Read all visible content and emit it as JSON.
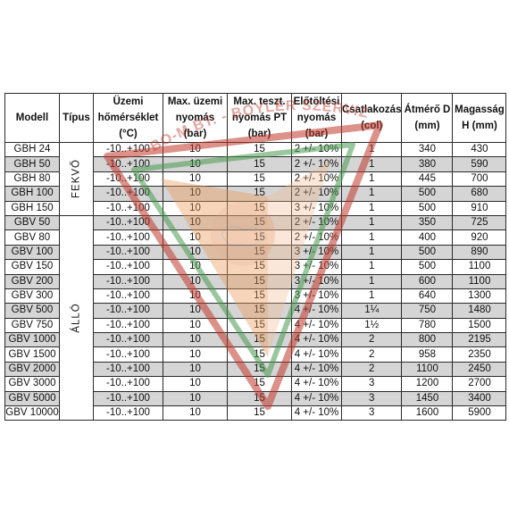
{
  "headers": {
    "model": "Modell",
    "type": "Típus",
    "temp": "Üzemi hőmérséklet (°C)",
    "max_pressure": "Max. üzemi nyomás (bar)",
    "test_pressure": "Max. teszt. nyomás PT (bar)",
    "precharge": "Előtöltési nyomás (bar)",
    "connection": "Csatlakozás (col)",
    "diameter": "Átmérő D (mm)",
    "height": "Magasság H (mm)"
  },
  "groups": {
    "horizontal": "FEKVŐ",
    "vertical": "ÁLLÓ"
  },
  "watermark_text": "BO-M BT. - BOYLER SZERVIZ",
  "colors": {
    "shade": "#d5d5d5",
    "watermark_orange": "#e89a5a",
    "watermark_red": "#c0392b",
    "watermark_green": "#4a9a52"
  },
  "rows": [
    {
      "model": "GBH 24",
      "temp": "-10..+100",
      "max": "10",
      "test": "15",
      "pre": "2 +/- 10%",
      "conn": "1",
      "d": "340",
      "h": "430"
    },
    {
      "model": "GBH 50",
      "temp": "-10..+100",
      "max": "10",
      "test": "15",
      "pre": "2 +/- 10%",
      "conn": "1",
      "d": "380",
      "h": "590"
    },
    {
      "model": "GBH 80",
      "temp": "-10..+100",
      "max": "10",
      "test": "15",
      "pre": "2 +/- 10%",
      "conn": "1",
      "d": "445",
      "h": "700"
    },
    {
      "model": "GBH 100",
      "temp": "-10..+100",
      "max": "10",
      "test": "15",
      "pre": "2 +/- 10%",
      "conn": "1",
      "d": "500",
      "h": "680"
    },
    {
      "model": "GBH 150",
      "temp": "-10..+100",
      "max": "10",
      "test": "15",
      "pre": "3 +/- 10%",
      "conn": "1",
      "d": "500",
      "h": "910"
    },
    {
      "model": "GBV 50",
      "temp": "-10..+100",
      "max": "10",
      "test": "15",
      "pre": "2 +/- 10%",
      "conn": "1",
      "d": "350",
      "h": "725"
    },
    {
      "model": "GBV 80",
      "temp": "-10..+100",
      "max": "10",
      "test": "15",
      "pre": "2 +/- 10%",
      "conn": "1",
      "d": "400",
      "h": "920"
    },
    {
      "model": "GBV 100",
      "temp": "-10..+100",
      "max": "10",
      "test": "15",
      "pre": "3 +/- 10%",
      "conn": "1",
      "d": "500",
      "h": "890"
    },
    {
      "model": "GBV 150",
      "temp": "-10..+100",
      "max": "10",
      "test": "15",
      "pre": "3 +/- 10%",
      "conn": "1",
      "d": "500",
      "h": "1100"
    },
    {
      "model": "GBV 200",
      "temp": "-10..+100",
      "max": "10",
      "test": "15",
      "pre": "3 +/- 10%",
      "conn": "1",
      "d": "600",
      "h": "1100"
    },
    {
      "model": "GBV 300",
      "temp": "-10..+100",
      "max": "10",
      "test": "15",
      "pre": "3 +/- 10%",
      "conn": "1",
      "d": "640",
      "h": "1300"
    },
    {
      "model": "GBV 500",
      "temp": "-10..+100",
      "max": "10",
      "test": "15",
      "pre": "4 +/- 10%",
      "conn": "1¼",
      "d": "750",
      "h": "1480"
    },
    {
      "model": "GBV 750",
      "temp": "-10..+100",
      "max": "10",
      "test": "15",
      "pre": "4 +/- 10%",
      "conn": "1½",
      "d": "780",
      "h": "1500"
    },
    {
      "model": "GBV 1000",
      "temp": "-10..+100",
      "max": "10",
      "test": "15",
      "pre": "4 +/- 10%",
      "conn": "2",
      "d": "800",
      "h": "2195"
    },
    {
      "model": "GBV 1500",
      "temp": "-10..+100",
      "max": "10",
      "test": "15",
      "pre": "4 +/- 10%",
      "conn": "2",
      "d": "958",
      "h": "2350"
    },
    {
      "model": "GBV 2000",
      "temp": "-10..+100",
      "max": "10",
      "test": "15",
      "pre": "4 +/- 10%",
      "conn": "2",
      "d": "1100",
      "h": "2450"
    },
    {
      "model": "GBV 3000",
      "temp": "-10..+100",
      "max": "10",
      "test": "15",
      "pre": "4 +/- 10%",
      "conn": "3",
      "d": "1200",
      "h": "2700"
    },
    {
      "model": "GBV 5000",
      "temp": "-10..+100",
      "max": "10",
      "test": "15",
      "pre": "4 +/- 10%",
      "conn": "3",
      "d": "1450",
      "h": "3400"
    },
    {
      "model": "GBV 10000",
      "temp": "-10..+100",
      "max": "10",
      "test": "15",
      "pre": "4 +/- 10%",
      "conn": "3",
      "d": "1600",
      "h": "5900"
    }
  ]
}
